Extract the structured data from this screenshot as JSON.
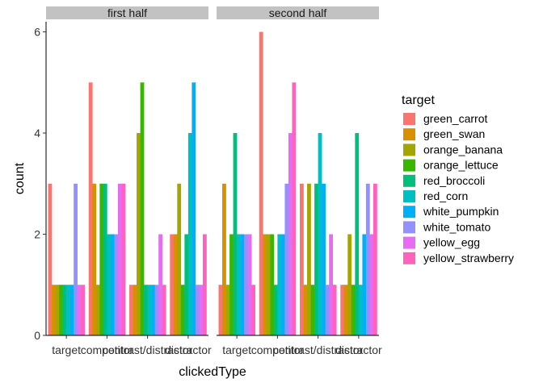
{
  "chart_data": {
    "type": "bar",
    "xlabel": "clickedType",
    "ylabel": "count",
    "ylim": [
      0,
      6.2
    ],
    "y_ticks": [
      0,
      2,
      4,
      6
    ],
    "categories": [
      "target",
      "competitor",
      "contrast/distractor",
      "distractor"
    ],
    "facets": [
      {
        "label": "first half",
        "values": [
          [
            3,
            1,
            1,
            1,
            1,
            1,
            1,
            3,
            1,
            1
          ],
          [
            5,
            3,
            1,
            3,
            3,
            2,
            2,
            2,
            3,
            3
          ],
          [
            1,
            1,
            4,
            5,
            1,
            1,
            1,
            1,
            2,
            1
          ],
          [
            2,
            2,
            3,
            1,
            2,
            4,
            5,
            1,
            1,
            2
          ]
        ]
      },
      {
        "label": "second half",
        "values": [
          [
            1,
            3,
            1,
            2,
            4,
            2,
            2,
            2,
            2,
            1
          ],
          [
            6,
            2,
            2,
            2,
            1,
            2,
            2,
            3,
            4,
            5
          ],
          [
            3,
            1,
            3,
            1,
            3,
            4,
            3,
            1,
            2,
            1
          ],
          [
            1,
            1,
            2,
            1,
            4,
            1,
            2,
            3,
            2,
            3
          ]
        ]
      }
    ],
    "legend_title": "target",
    "legend_position": "right",
    "series": [
      {
        "name": "green_carrot",
        "color": "#F8766D"
      },
      {
        "name": "green_swan",
        "color": "#D89000"
      },
      {
        "name": "orange_banana",
        "color": "#A3A500"
      },
      {
        "name": "orange_lettuce",
        "color": "#39B600"
      },
      {
        "name": "red_broccoli",
        "color": "#00BF7D"
      },
      {
        "name": "red_corn",
        "color": "#00BFC4"
      },
      {
        "name": "white_pumpkin",
        "color": "#00B0F6"
      },
      {
        "name": "white_tomato",
        "color": "#9590FF"
      },
      {
        "name": "yellow_egg",
        "color": "#E76BF3"
      },
      {
        "name": "yellow_strawberry",
        "color": "#FF62BC"
      }
    ],
    "strip_color": "#C2C2C2",
    "grid": false
  }
}
